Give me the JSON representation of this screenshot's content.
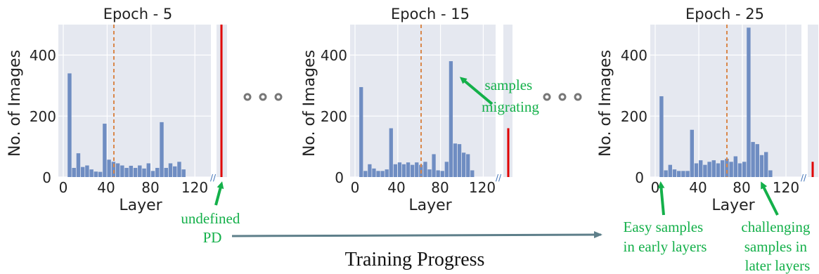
{
  "chart_data": [
    {
      "type": "bar",
      "title": "Epoch - 5",
      "xlabel": "Layer",
      "ylabel": "No. of Images",
      "xlim": [
        0,
        128
      ],
      "ylim": [
        0,
        500
      ],
      "xticks": [
        0,
        40,
        80,
        120
      ],
      "yticks": [
        0,
        200,
        400
      ],
      "bin_width": 4,
      "bins_start": [
        4,
        8,
        12,
        16,
        20,
        24,
        28,
        32,
        36,
        40,
        44,
        48,
        52,
        56,
        60,
        64,
        68,
        72,
        76,
        80,
        84,
        88,
        92,
        96,
        100,
        104,
        108,
        112
      ],
      "values": [
        340,
        30,
        78,
        33,
        38,
        25,
        18,
        17,
        175,
        57,
        50,
        45,
        38,
        30,
        37,
        30,
        38,
        28,
        45,
        20,
        30,
        180,
        30,
        45,
        35,
        50,
        25,
        0
      ],
      "undefined_value": 500,
      "grid": true
    },
    {
      "type": "bar",
      "title": "Epoch - 15",
      "xlabel": "Layer",
      "ylabel": "No. of Images",
      "xlim": [
        0,
        128
      ],
      "ylim": [
        0,
        500
      ],
      "xticks": [
        0,
        40,
        80,
        120
      ],
      "yticks": [
        0,
        200,
        400
      ],
      "bin_width": 4,
      "bins_start": [
        4,
        8,
        12,
        16,
        20,
        24,
        28,
        32,
        36,
        40,
        44,
        48,
        52,
        56,
        60,
        64,
        68,
        72,
        76,
        80,
        84,
        88,
        92,
        96,
        100,
        104,
        108,
        112
      ],
      "values": [
        295,
        20,
        42,
        28,
        20,
        20,
        25,
        160,
        42,
        48,
        42,
        48,
        40,
        48,
        40,
        50,
        25,
        75,
        22,
        20,
        50,
        380,
        110,
        108,
        80,
        75,
        22,
        0
      ],
      "undefined_value": 160,
      "grid": true
    },
    {
      "type": "bar",
      "title": "Epoch - 25",
      "xlabel": "Layer",
      "ylabel": "No. of Images",
      "xlim": [
        0,
        128
      ],
      "ylim": [
        0,
        500
      ],
      "xticks": [
        0,
        40,
        80,
        120
      ],
      "yticks": [
        0,
        200,
        400
      ],
      "bin_width": 4,
      "bins_start": [
        4,
        8,
        12,
        16,
        20,
        24,
        28,
        32,
        36,
        40,
        44,
        48,
        52,
        56,
        60,
        64,
        68,
        72,
        76,
        80,
        84,
        88,
        92,
        96,
        100,
        104,
        108,
        112
      ],
      "values": [
        265,
        22,
        40,
        25,
        20,
        20,
        20,
        155,
        45,
        55,
        40,
        50,
        55,
        45,
        55,
        60,
        50,
        68,
        45,
        50,
        490,
        115,
        108,
        72,
        82,
        22,
        0,
        0
      ],
      "undefined_value": 50,
      "grid": true
    }
  ],
  "annotations": {
    "undefined_pd": [
      "undefined",
      "PD"
    ],
    "samples_migrating": [
      "samples",
      "migrating"
    ],
    "easy_samples": [
      "Easy samples",
      "in early layers"
    ],
    "challenging_samples": [
      "challenging",
      "samples in",
      "later layers"
    ],
    "training_progress": "Training Progress"
  },
  "colors": {
    "panel_bg": "#e5e8f0",
    "bar": "#6f8dc2",
    "median_line": "#d9874a",
    "undefined_bar": "#e00000",
    "annotation": "#14b04a",
    "progress_arrow": "#5e7f8a",
    "dots": "#777777"
  }
}
